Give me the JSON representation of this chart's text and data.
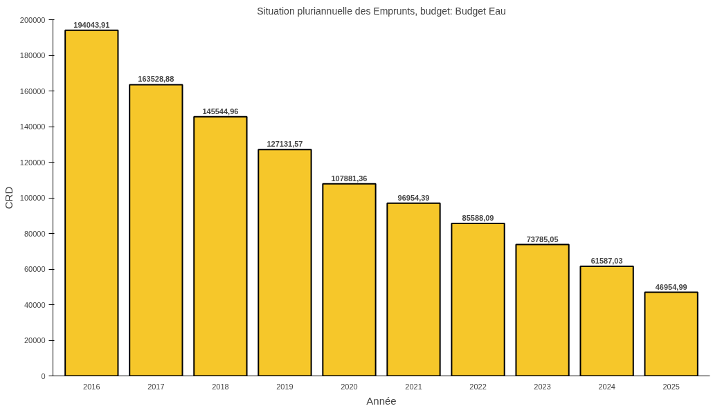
{
  "chart_data": {
    "type": "bar",
    "title": "Situation pluriannuelle des Emprunts, budget: Budget Eau",
    "xlabel": "Année",
    "ylabel": "CRD",
    "categories": [
      "2016",
      "2017",
      "2018",
      "2019",
      "2020",
      "2021",
      "2022",
      "2023",
      "2024",
      "2025"
    ],
    "values": [
      194043.91,
      163528.88,
      145544.96,
      127131.57,
      107881.36,
      96954.39,
      85588.09,
      73785.05,
      61587.03,
      46954.99
    ],
    "value_labels": [
      "194043,91",
      "163528,88",
      "145544,96",
      "127131,57",
      "107881,36",
      "96954,39",
      "85588,09",
      "73785,05",
      "61587,03",
      "46954,99"
    ],
    "color": "#f6c72a",
    "ylim": [
      0,
      200000
    ],
    "yticks": [
      0,
      20000,
      40000,
      60000,
      80000,
      100000,
      120000,
      140000,
      160000,
      180000,
      200000
    ],
    "grid": false
  }
}
